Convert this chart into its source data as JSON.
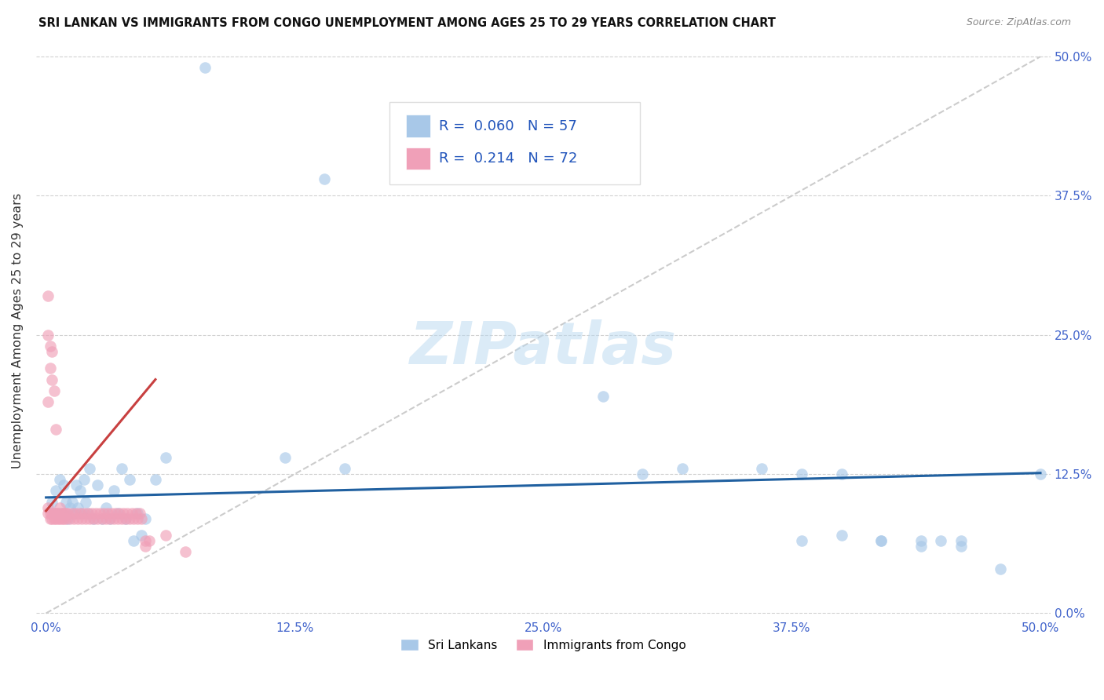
{
  "title": "SRI LANKAN VS IMMIGRANTS FROM CONGO UNEMPLOYMENT AMONG AGES 25 TO 29 YEARS CORRELATION CHART",
  "source": "Source: ZipAtlas.com",
  "ylabel": "Unemployment Among Ages 25 to 29 years",
  "legend_label_1": "Sri Lankans",
  "legend_label_2": "Immigrants from Congo",
  "R1": "0.060",
  "N1": "57",
  "R2": "0.214",
  "N2": "72",
  "color_blue": "#a8c8e8",
  "color_pink": "#f0a0b8",
  "color_blue_line": "#2060a0",
  "color_pink_line": "#c84040",
  "watermark": "ZIPatlas",
  "tick_color": "#4466cc",
  "xlim": [
    0.0,
    0.5
  ],
  "ylim": [
    0.0,
    0.5
  ],
  "xticks": [
    0.0,
    0.125,
    0.25,
    0.375,
    0.5
  ],
  "yticks": [
    0.0,
    0.125,
    0.25,
    0.375,
    0.5
  ],
  "tick_labels": [
    "0.0%",
    "12.5%",
    "25.0%",
    "37.5%",
    "50.0%"
  ],
  "sri_x": [
    0.003,
    0.004,
    0.005,
    0.006,
    0.007,
    0.008,
    0.009,
    0.01,
    0.011,
    0.012,
    0.013,
    0.014,
    0.015,
    0.016,
    0.017,
    0.018,
    0.019,
    0.02,
    0.021,
    0.022,
    0.024,
    0.026,
    0.028,
    0.03,
    0.032,
    0.034,
    0.036,
    0.038,
    0.04,
    0.042,
    0.044,
    0.046,
    0.048,
    0.05,
    0.055,
    0.06,
    0.12,
    0.15,
    0.08,
    0.14,
    0.28,
    0.3,
    0.32,
    0.36,
    0.38,
    0.4,
    0.42,
    0.44,
    0.45,
    0.46,
    0.38,
    0.4,
    0.42,
    0.44,
    0.46,
    0.48,
    0.5
  ],
  "sri_y": [
    0.1,
    0.09,
    0.11,
    0.09,
    0.12,
    0.09,
    0.115,
    0.1,
    0.085,
    0.095,
    0.1,
    0.09,
    0.115,
    0.095,
    0.11,
    0.09,
    0.12,
    0.1,
    0.09,
    0.13,
    0.085,
    0.115,
    0.085,
    0.095,
    0.085,
    0.11,
    0.09,
    0.13,
    0.085,
    0.12,
    0.065,
    0.09,
    0.07,
    0.085,
    0.12,
    0.14,
    0.14,
    0.13,
    0.49,
    0.39,
    0.195,
    0.125,
    0.13,
    0.13,
    0.125,
    0.125,
    0.065,
    0.065,
    0.065,
    0.065,
    0.065,
    0.07,
    0.065,
    0.06,
    0.06,
    0.04,
    0.125
  ],
  "congo_x": [
    0.001,
    0.001,
    0.002,
    0.002,
    0.003,
    0.003,
    0.004,
    0.004,
    0.005,
    0.005,
    0.006,
    0.006,
    0.007,
    0.007,
    0.008,
    0.008,
    0.009,
    0.009,
    0.01,
    0.01,
    0.011,
    0.012,
    0.013,
    0.014,
    0.015,
    0.016,
    0.017,
    0.018,
    0.019,
    0.02,
    0.021,
    0.022,
    0.023,
    0.024,
    0.025,
    0.026,
    0.027,
    0.028,
    0.029,
    0.03,
    0.031,
    0.032,
    0.033,
    0.034,
    0.035,
    0.036,
    0.037,
    0.038,
    0.039,
    0.04,
    0.041,
    0.042,
    0.043,
    0.044,
    0.045,
    0.046,
    0.047,
    0.048,
    0.05,
    0.052,
    0.001,
    0.002,
    0.003,
    0.004,
    0.005,
    0.001,
    0.002,
    0.003,
    0.001,
    0.05,
    0.06,
    0.07
  ],
  "congo_y": [
    0.09,
    0.095,
    0.085,
    0.09,
    0.085,
    0.09,
    0.085,
    0.09,
    0.085,
    0.09,
    0.085,
    0.09,
    0.085,
    0.095,
    0.09,
    0.085,
    0.09,
    0.085,
    0.09,
    0.085,
    0.09,
    0.085,
    0.09,
    0.085,
    0.09,
    0.085,
    0.09,
    0.085,
    0.09,
    0.085,
    0.09,
    0.085,
    0.09,
    0.085,
    0.09,
    0.085,
    0.09,
    0.085,
    0.09,
    0.085,
    0.09,
    0.085,
    0.09,
    0.085,
    0.09,
    0.085,
    0.09,
    0.085,
    0.09,
    0.085,
    0.09,
    0.085,
    0.09,
    0.085,
    0.09,
    0.085,
    0.09,
    0.085,
    0.06,
    0.065,
    0.285,
    0.22,
    0.21,
    0.2,
    0.165,
    0.25,
    0.24,
    0.235,
    0.19,
    0.065,
    0.07,
    0.055
  ],
  "blue_line_x": [
    0.0,
    0.5
  ],
  "blue_line_y": [
    0.104,
    0.126
  ],
  "pink_line_x": [
    0.0,
    0.055
  ],
  "pink_line_y": [
    0.092,
    0.21
  ],
  "diag_line_x": [
    0.0,
    0.5
  ],
  "diag_line_y": [
    0.0,
    0.5
  ]
}
